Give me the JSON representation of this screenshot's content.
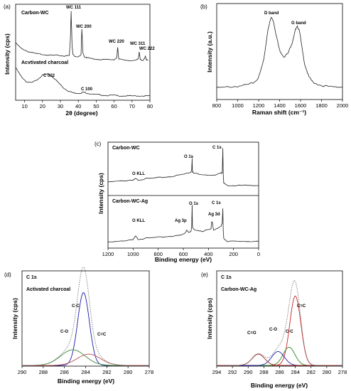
{
  "chart_data": [
    {
      "type": "line",
      "panel": "(a)",
      "xlabel": "2θ (degree)",
      "ylabel": "Intensity (cps)",
      "xlim": [
        5,
        80
      ],
      "xticks": [
        "10",
        "20",
        "30",
        "40",
        "50",
        "60",
        "70",
        "80"
      ],
      "color": "#222222",
      "series": [
        {
          "name": "Carbon-WC",
          "x": [
            5,
            8,
            12,
            16,
            20,
            24,
            28,
            32,
            34,
            35,
            35.6,
            36,
            36.5,
            37,
            38,
            40,
            41.5,
            42,
            42.6,
            43.5,
            45,
            48,
            52,
            56,
            60,
            61.5,
            62,
            62.6,
            64,
            68,
            72,
            73.5,
            74,
            74.6,
            76,
            77,
            77.5,
            78,
            79
          ],
          "y": [
            64,
            58,
            54,
            52,
            51,
            50,
            50,
            49,
            49.5,
            50,
            70,
            100,
            62,
            51,
            49,
            48,
            50,
            80,
            52,
            48,
            47,
            46,
            45,
            45,
            45,
            47,
            59,
            46,
            45,
            44,
            44,
            46,
            54,
            45,
            44,
            46,
            49,
            45,
            44
          ]
        },
        {
          "name": "Acvtivated charcoal",
          "x": [
            5,
            8,
            11,
            14,
            17,
            20,
            23,
            26,
            29,
            32,
            35,
            38,
            41,
            43,
            45,
            48,
            52,
            56,
            60,
            64,
            68,
            72,
            76,
            80
          ],
          "y": [
            28,
            20,
            15,
            14,
            17,
            21,
            22,
            19,
            14,
            9,
            6,
            4.5,
            4.5,
            5.5,
            4.5,
            3.5,
            3,
            2.5,
            2.5,
            2,
            2,
            2,
            2,
            2
          ]
        }
      ],
      "annotations": [
        "WC 111",
        "WC 200",
        "WC 220",
        "WC 311",
        "WC 222",
        "C 002",
        "C 100"
      ]
    },
    {
      "type": "line",
      "panel": "(b)",
      "xlabel": "Raman shift (cm⁻¹)",
      "ylabel": "Intensity (a.u.)",
      "xlim": [
        800,
        2000
      ],
      "xticks": [
        "800",
        "1000",
        "1200",
        "1400",
        "1600",
        "1800",
        "2000"
      ],
      "color": "#222222",
      "series": [
        {
          "name": "",
          "x": [
            800,
            900,
            1000,
            1100,
            1150,
            1200,
            1250,
            1290,
            1320,
            1340,
            1370,
            1400,
            1440,
            1480,
            1520,
            1550,
            1570,
            1590,
            1610,
            1640,
            1680,
            1720,
            1800,
            1900,
            2000
          ],
          "y": [
            4,
            5,
            6,
            8,
            11,
            17,
            40,
            80,
            94,
            90,
            70,
            52,
            44,
            48,
            62,
            78,
            82,
            78,
            58,
            34,
            18,
            11,
            7,
            5,
            5
          ]
        }
      ],
      "annotations": [
        "D band",
        "G band"
      ]
    },
    {
      "type": "line",
      "panel": "(c)",
      "xlabel": "Binding energy (eV)",
      "ylabel": "Intensity (cps)",
      "xlim": [
        1200,
        0
      ],
      "xticks": [
        "1200",
        "1000",
        "800",
        "600",
        "400",
        "200",
        "0"
      ],
      "color": "#222222",
      "series": [
        {
          "name": "Carbon-WC",
          "x": [
            1200,
            1100,
            1000,
            980,
            960,
            900,
            800,
            700,
            600,
            540,
            533,
            530,
            527,
            520,
            450,
            350,
            300,
            290,
            285,
            282,
            278,
            250,
            200,
            100,
            0
          ],
          "y": [
            40,
            42,
            44,
            46,
            44,
            46,
            48,
            50,
            54,
            58,
            62,
            82,
            60,
            56,
            54,
            52,
            56,
            58,
            100,
            55,
            38,
            34,
            34,
            34,
            34
          ]
        },
        {
          "name": "Carbon-WC-Ag",
          "x": [
            1200,
            1100,
            1000,
            980,
            960,
            900,
            800,
            700,
            620,
            590,
            573,
            560,
            540,
            533,
            530,
            527,
            520,
            450,
            380,
            373,
            368,
            360,
            300,
            290,
            285,
            282,
            278,
            250,
            200,
            100,
            0
          ],
          "y": [
            20,
            22,
            26,
            32,
            26,
            28,
            30,
            32,
            34,
            38,
            44,
            40,
            42,
            50,
            95,
            50,
            46,
            42,
            46,
            62,
            58,
            44,
            52,
            58,
            88,
            42,
            28,
            22,
            22,
            22,
            22
          ]
        }
      ],
      "annotations": [
        "O KLL",
        "O 1s",
        "C 1s",
        "O KLL",
        "Ag 3p",
        "O 1s",
        "C 1s",
        "Ag 3d"
      ]
    },
    {
      "type": "line",
      "panel": "(d)",
      "title": "C 1s",
      "subtitle": "Activated charcoal",
      "xlabel": "Binding energy (eV)",
      "ylabel": "Intensity (cps)",
      "xlim": [
        290,
        278
      ],
      "xticks": [
        "290",
        "288",
        "286",
        "284",
        "282",
        "280",
        "278"
      ],
      "series": [
        {
          "name": "C-C",
          "type": "gaussian",
          "center": 284.2,
          "sigma": 0.55,
          "amp": 84,
          "color": "#1a1aa6"
        },
        {
          "name": "C-O",
          "type": "gaussian",
          "center": 285.2,
          "sigma": 1.15,
          "amp": 18,
          "color": "#3a8a3a"
        },
        {
          "name": "C=C",
          "type": "gaussian",
          "center": 283.7,
          "sigma": 1.1,
          "amp": 13,
          "color": "#b85050"
        }
      ],
      "envelope": {
        "style": "dotted",
        "color": "#777777"
      },
      "annotations": [
        "C-C",
        "C-O",
        "C=C"
      ]
    },
    {
      "type": "line",
      "panel": "(e)",
      "title": "C 1s",
      "subtitle": "Carbon-WC-Ag",
      "xlabel": "Binding energy (eV)",
      "ylabel": "Intensity (cps)",
      "xlim": [
        294,
        278
      ],
      "xticks": [
        "294",
        "292",
        "290",
        "288",
        "286",
        "284",
        "282",
        "280",
        "278"
      ],
      "series": [
        {
          "name": "C=C",
          "type": "gaussian",
          "center": 284.0,
          "sigma": 0.7,
          "amp": 80,
          "color": "#cc2222"
        },
        {
          "name": "C-C",
          "type": "gaussian",
          "center": 284.8,
          "sigma": 0.75,
          "amp": 21,
          "color": "#2a8a2a"
        },
        {
          "name": "C-O",
          "type": "gaussian",
          "center": 286.2,
          "sigma": 0.8,
          "amp": 16,
          "color": "#2222aa"
        },
        {
          "name": "C=O",
          "type": "gaussian",
          "center": 288.7,
          "sigma": 0.8,
          "amp": 13,
          "color": "#aa2222"
        }
      ],
      "envelope": {
        "style": "dotted",
        "color": "#777777"
      },
      "annotations": [
        "C=C",
        "C-C",
        "C-O",
        "C=O"
      ]
    }
  ]
}
